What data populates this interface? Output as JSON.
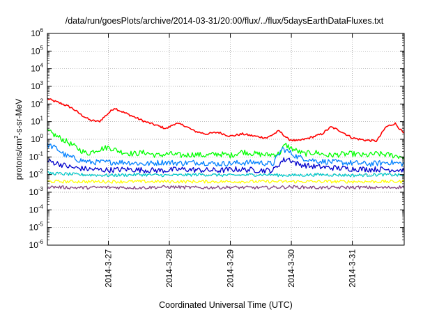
{
  "chart_data": {
    "type": "line",
    "title": "/data/run/goesPlots/archive/2014-03-31/20:00/flux/../flux/5daysEarthDataFluxes.txt",
    "xlabel": "Coordinated Universal Time (UTC)",
    "ylabel": {
      "prefix": "protons/cm",
      "superscript": "2",
      "suffix": "-s-sr-MeV"
    },
    "y_scale": "log",
    "ylim_exponents": [
      -6,
      6
    ],
    "y_tick_base": "10",
    "y_tick_exponents": [
      "6",
      "5",
      "4",
      "3",
      "2",
      "1",
      "0",
      "-1",
      "-2",
      "-3",
      "-4",
      "-5",
      "-6"
    ],
    "x_ticks": [
      "2014-3-27",
      "2014-3-28",
      "2014-3-29",
      "2014-3-30",
      "2014-3-31"
    ],
    "x_tick_days": [
      1,
      2,
      3,
      4,
      5
    ],
    "x_domain_days": [
      0,
      5.85
    ],
    "grid": true,
    "legend": "none",
    "series": [
      {
        "color": "#ff0000",
        "x_days": [
          0,
          0.1,
          0.25,
          0.4,
          0.55,
          0.7,
          0.85,
          1.0,
          1.1,
          1.2,
          1.4,
          1.6,
          1.8,
          1.95,
          2.1,
          2.25,
          2.4,
          2.6,
          2.8,
          3.0,
          3.2,
          3.4,
          3.6,
          3.8,
          3.95,
          4.1,
          4.3,
          4.5,
          4.65,
          4.8,
          5.0,
          5.2,
          5.4,
          5.55,
          5.7,
          5.85
        ],
        "values": [
          200,
          150,
          100,
          60,
          25,
          12,
          10,
          30,
          60,
          40,
          20,
          10,
          6,
          4,
          8,
          6,
          3,
          2,
          2.5,
          1.5,
          2,
          1.5,
          1.2,
          3,
          1,
          0.8,
          1.2,
          2,
          5,
          3,
          1.2,
          0.9,
          0.8,
          5,
          8,
          2
        ]
      },
      {
        "color": "#00ff00",
        "x_days": [
          0,
          0.15,
          0.3,
          0.5,
          0.65,
          0.8,
          1.0,
          1.2,
          1.4,
          1.6,
          1.8,
          2.0,
          2.2,
          2.4,
          2.6,
          2.8,
          3.0,
          3.2,
          3.4,
          3.6,
          3.8,
          3.9,
          4.0,
          4.2,
          4.4,
          4.6,
          4.8,
          5.0,
          5.2,
          5.4,
          5.6,
          5.85
        ],
        "values": [
          3,
          1.5,
          0.8,
          0.3,
          0.15,
          0.25,
          0.35,
          0.2,
          0.15,
          0.18,
          0.12,
          0.15,
          0.12,
          0.14,
          0.12,
          0.15,
          0.12,
          0.2,
          0.15,
          0.13,
          0.15,
          0.5,
          0.3,
          0.15,
          0.18,
          0.12,
          0.14,
          0.15,
          0.12,
          0.15,
          0.13,
          0.1
        ]
      },
      {
        "color": "#0080ff",
        "x_days": [
          0,
          0.15,
          0.3,
          0.5,
          0.7,
          1.0,
          1.3,
          1.6,
          1.9,
          2.2,
          2.5,
          2.8,
          3.1,
          3.4,
          3.7,
          3.85,
          3.95,
          4.1,
          4.4,
          4.7,
          5.0,
          5.3,
          5.6,
          5.85
        ],
        "values": [
          0.5,
          0.3,
          0.12,
          0.07,
          0.05,
          0.05,
          0.05,
          0.04,
          0.05,
          0.045,
          0.05,
          0.04,
          0.045,
          0.05,
          0.04,
          0.3,
          0.2,
          0.1,
          0.06,
          0.05,
          0.045,
          0.04,
          0.05,
          0.04
        ]
      },
      {
        "color": "#0000cc",
        "x_days": [
          0,
          0.2,
          0.4,
          0.7,
          1.0,
          1.3,
          1.6,
          1.9,
          2.2,
          2.5,
          2.8,
          3.1,
          3.4,
          3.7,
          3.85,
          3.95,
          4.1,
          4.3,
          4.6,
          4.9,
          5.2,
          5.5,
          5.85
        ],
        "values": [
          0.06,
          0.04,
          0.025,
          0.02,
          0.018,
          0.02,
          0.018,
          0.017,
          0.02,
          0.018,
          0.017,
          0.02,
          0.018,
          0.017,
          0.06,
          0.08,
          0.04,
          0.03,
          0.025,
          0.022,
          0.02,
          0.02,
          0.018
        ]
      },
      {
        "color": "#00c8c8",
        "x_days": [
          0,
          0.5,
          1.0,
          1.5,
          2.0,
          2.5,
          3.0,
          3.5,
          4.0,
          4.5,
          5.0,
          5.5,
          5.85
        ],
        "values": [
          0.012,
          0.01,
          0.009,
          0.01,
          0.009,
          0.01,
          0.009,
          0.01,
          0.009,
          0.01,
          0.009,
          0.01,
          0.009
        ]
      },
      {
        "color": "#ffff00",
        "x_days": [
          0,
          0.5,
          1.0,
          1.5,
          2.0,
          2.5,
          3.0,
          3.5,
          4.0,
          4.5,
          5.0,
          5.5,
          5.85
        ],
        "values": [
          0.004,
          0.004,
          0.004,
          0.004,
          0.004,
          0.004,
          0.004,
          0.004,
          0.004,
          0.004,
          0.004,
          0.004,
          0.004
        ]
      },
      {
        "color": "#7f3f7f",
        "x_days": [
          0,
          0.5,
          1.0,
          1.5,
          2.0,
          2.5,
          3.0,
          3.5,
          4.0,
          4.5,
          5.0,
          5.5,
          5.85
        ],
        "values": [
          0.002,
          0.0018,
          0.0019,
          0.0018,
          0.002,
          0.0018,
          0.0019,
          0.0018,
          0.002,
          0.0018,
          0.0019,
          0.0018,
          0.002
        ]
      }
    ]
  }
}
